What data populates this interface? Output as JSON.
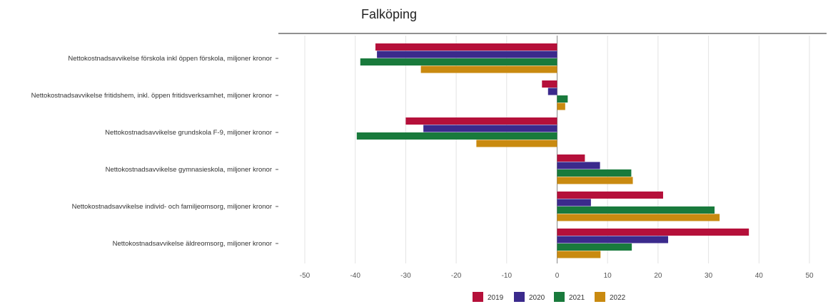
{
  "chart_data": {
    "type": "bar",
    "orientation": "horizontal",
    "title": "Falköping",
    "categories": [
      "Nettokostnadsavvikelse förskola inkl öppen förskola, miljoner kronor",
      "Nettokostnadsavvikelse fritidshem, inkl. öppen fritidsverksamhet, miljoner kronor",
      "Nettokostnadsavvikelse grundskola F-9, miljoner kronor",
      "Nettokostnadsavvikelse gymnasieskola, miljoner kronor",
      "Nettokostnadsavvikelse individ- och familjeomsorg, miljoner kronor",
      "Nettokostnadsavvikelse äldreomsorg, miljoner kronor"
    ],
    "series": [
      {
        "name": "2019",
        "color": "#b5103a",
        "values": [
          -36,
          -3,
          -30,
          5.5,
          21,
          38
        ]
      },
      {
        "name": "2020",
        "color": "#3b2a8c",
        "values": [
          -35.7,
          -1.8,
          -26.5,
          8.5,
          6.7,
          22
        ]
      },
      {
        "name": "2021",
        "color": "#197a3c",
        "values": [
          -39,
          2.1,
          -39.7,
          14.7,
          31.2,
          14.8
        ]
      },
      {
        "name": "2022",
        "color": "#c98a10",
        "values": [
          -27,
          1.6,
          -16,
          15,
          32.2,
          8.6
        ]
      }
    ],
    "xlim": [
      -50,
      50
    ],
    "xticks": [
      "-50",
      "-40",
      "-30",
      "-20",
      "-10",
      "0",
      "10",
      "20",
      "30",
      "40",
      "50"
    ],
    "grid": true,
    "legend_position": "bottom"
  }
}
